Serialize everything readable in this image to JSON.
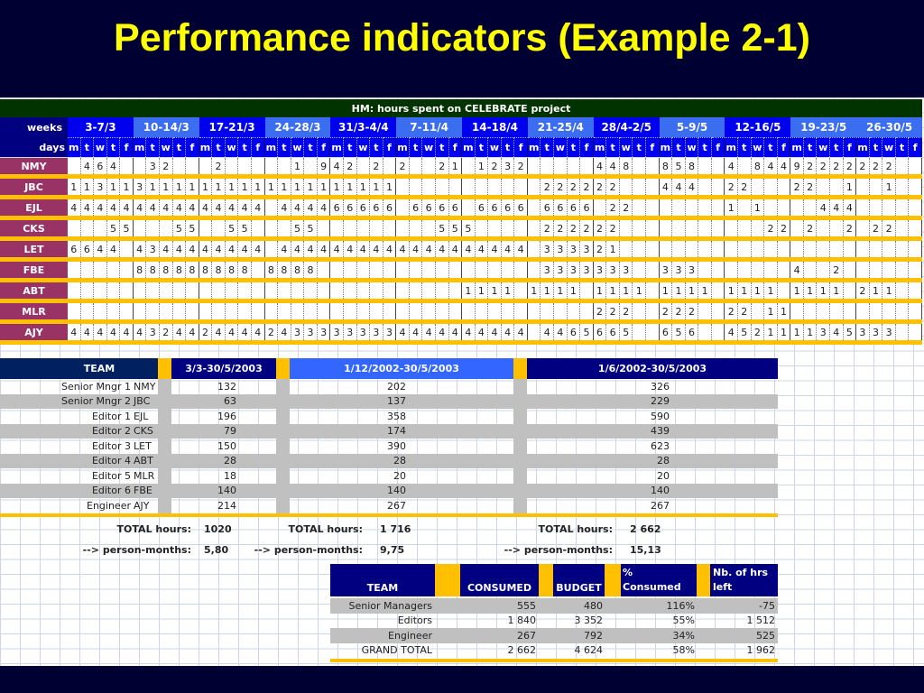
{
  "title": "Performance indicators (Example 2-1)",
  "colors": {
    "title": "#ffff00",
    "title_bar": "#003300",
    "week_dark": "#0000ee",
    "week_light": "#3a6df0",
    "person_label": "#993366",
    "stripe": "#ffc000",
    "navy": "#000080",
    "light_blue": "#3366ff",
    "row_gray": "#c0c0c0"
  },
  "hours_table": {
    "title": "HM: hours spent on CELEBRATE project",
    "weeks_label": "weeks",
    "days_label": "days",
    "weeks": [
      "3-7/3",
      "10-14/3",
      "17-21/3",
      "24-28/3",
      "31/3-4/4",
      "7-11/4",
      "14-18/4",
      "21-25/4",
      "28/4-2/5",
      "5-9/5",
      "12-16/5",
      "19-23/5",
      "26-30/5"
    ],
    "week_shade": [
      "dark",
      "light",
      "dark",
      "light",
      "dark",
      "light",
      "dark",
      "light",
      "dark",
      "light",
      "dark",
      "light",
      "light"
    ],
    "day_labels": [
      "m",
      "t",
      "w",
      "t",
      "f"
    ],
    "rows": [
      {
        "code": "NMY",
        "hours": [
          null,
          4,
          6,
          4,
          null,
          null,
          3,
          2,
          null,
          null,
          null,
          2,
          null,
          null,
          null,
          null,
          null,
          1,
          null,
          9,
          4,
          2,
          null,
          2,
          null,
          2,
          null,
          null,
          2,
          1,
          null,
          1,
          2,
          3,
          2,
          null,
          null,
          null,
          null,
          null,
          4,
          4,
          8,
          null,
          null,
          8,
          5,
          8,
          null,
          null,
          4,
          null,
          8,
          4,
          4,
          9,
          2,
          2,
          2,
          2,
          2,
          2,
          2,
          null,
          null
        ]
      },
      {
        "code": "JBC",
        "hours": [
          1,
          1,
          3,
          1,
          1,
          3,
          1,
          1,
          1,
          1,
          1,
          1,
          1,
          1,
          1,
          1,
          1,
          1,
          1,
          1,
          1,
          1,
          1,
          1,
          1,
          null,
          null,
          null,
          null,
          null,
          null,
          null,
          null,
          null,
          null,
          null,
          2,
          2,
          2,
          2,
          2,
          2,
          null,
          null,
          null,
          4,
          4,
          4,
          null,
          null,
          2,
          2,
          null,
          null,
          null,
          2,
          2,
          null,
          null,
          1,
          null,
          null,
          1,
          null,
          null
        ]
      },
      {
        "code": "EJL",
        "hours": [
          4,
          4,
          4,
          4,
          4,
          4,
          4,
          4,
          4,
          4,
          4,
          4,
          4,
          4,
          4,
          null,
          4,
          4,
          4,
          4,
          6,
          6,
          6,
          6,
          6,
          null,
          6,
          6,
          6,
          6,
          null,
          6,
          6,
          6,
          6,
          null,
          6,
          6,
          6,
          6,
          null,
          2,
          2,
          null,
          null,
          null,
          null,
          null,
          null,
          null,
          1,
          null,
          1,
          null,
          null,
          null,
          null,
          4,
          4,
          4,
          null,
          null,
          null,
          null,
          null
        ]
      },
      {
        "code": "CKS",
        "hours": [
          null,
          null,
          null,
          5,
          5,
          null,
          null,
          null,
          5,
          5,
          null,
          null,
          5,
          5,
          null,
          null,
          null,
          5,
          5,
          null,
          null,
          null,
          null,
          null,
          null,
          null,
          null,
          null,
          5,
          5,
          5,
          null,
          null,
          null,
          null,
          null,
          2,
          2,
          2,
          2,
          2,
          2,
          null,
          null,
          null,
          null,
          null,
          null,
          null,
          null,
          null,
          null,
          null,
          2,
          2,
          null,
          2,
          null,
          null,
          2,
          null,
          2,
          2,
          null,
          null
        ]
      },
      {
        "code": "LET",
        "hours": [
          6,
          6,
          4,
          4,
          null,
          4,
          3,
          4,
          4,
          4,
          4,
          4,
          4,
          4,
          4,
          null,
          4,
          4,
          4,
          4,
          4,
          4,
          4,
          4,
          4,
          4,
          4,
          4,
          4,
          4,
          4,
          4,
          4,
          4,
          4,
          null,
          3,
          3,
          3,
          3,
          2,
          1,
          null,
          null,
          null,
          null,
          null,
          null,
          null,
          null,
          null,
          null,
          null,
          null,
          null,
          null,
          null,
          null,
          null,
          null,
          null,
          null,
          null,
          null,
          null
        ]
      },
      {
        "code": "FBE",
        "hours": [
          null,
          null,
          null,
          null,
          null,
          8,
          8,
          8,
          8,
          8,
          8,
          8,
          8,
          8,
          null,
          8,
          8,
          8,
          8,
          null,
          null,
          null,
          null,
          null,
          null,
          null,
          null,
          null,
          null,
          null,
          null,
          null,
          null,
          null,
          null,
          null,
          3,
          3,
          3,
          3,
          3,
          3,
          3,
          null,
          null,
          3,
          3,
          3,
          null,
          null,
          null,
          null,
          null,
          null,
          null,
          4,
          null,
          null,
          2,
          null,
          null,
          null,
          null,
          null,
          null
        ]
      },
      {
        "code": "ABT",
        "hours": [
          null,
          null,
          null,
          null,
          null,
          null,
          null,
          null,
          null,
          null,
          null,
          null,
          null,
          null,
          null,
          null,
          null,
          null,
          null,
          null,
          null,
          null,
          null,
          null,
          null,
          null,
          null,
          null,
          null,
          null,
          1,
          1,
          1,
          1,
          null,
          1,
          1,
          1,
          1,
          null,
          1,
          1,
          1,
          1,
          null,
          1,
          1,
          1,
          1,
          null,
          1,
          1,
          1,
          1,
          null,
          1,
          1,
          1,
          1,
          null,
          2,
          1,
          1,
          null,
          null
        ]
      },
      {
        "code": "MLR",
        "hours": [
          null,
          null,
          null,
          null,
          null,
          null,
          null,
          null,
          null,
          null,
          null,
          null,
          null,
          null,
          null,
          null,
          null,
          null,
          null,
          null,
          null,
          null,
          null,
          null,
          null,
          null,
          null,
          null,
          null,
          null,
          null,
          null,
          null,
          null,
          null,
          null,
          null,
          null,
          null,
          null,
          2,
          2,
          2,
          null,
          null,
          2,
          2,
          2,
          null,
          null,
          2,
          2,
          null,
          1,
          1,
          null,
          null,
          null,
          null,
          null,
          null,
          null,
          null,
          null,
          null
        ]
      },
      {
        "code": "AJY",
        "hours": [
          4,
          4,
          4,
          4,
          4,
          4,
          3,
          2,
          4,
          4,
          2,
          4,
          4,
          4,
          4,
          2,
          4,
          3,
          3,
          3,
          3,
          3,
          3,
          3,
          3,
          4,
          4,
          4,
          4,
          4,
          4,
          4,
          4,
          4,
          4,
          null,
          4,
          4,
          6,
          5,
          6,
          6,
          5,
          null,
          null,
          6,
          5,
          6,
          null,
          null,
          4,
          5,
          2,
          1,
          1,
          1,
          1,
          3,
          4,
          5,
          3,
          3,
          3,
          null,
          null
        ]
      }
    ]
  },
  "summary_table": {
    "headers": {
      "team": "TEAM",
      "period1": "3/3-30/5/2003",
      "period2": "1/12/2002-30/5/2003",
      "period3": "1/6/2002-30/5/2003"
    },
    "rows": [
      {
        "role": "Senior Mngr 1",
        "code": "NMY",
        "p1": "132",
        "p2": "202",
        "p3": "326"
      },
      {
        "role": "Senior Mngr 2",
        "code": "JBC",
        "p1": "63",
        "p2": "137",
        "p3": "229"
      },
      {
        "role": "Editor 1",
        "code": "EJL",
        "p1": "196",
        "p2": "358",
        "p3": "590"
      },
      {
        "role": "Editor 2",
        "code": "CKS",
        "p1": "79",
        "p2": "174",
        "p3": "439"
      },
      {
        "role": "Editor 3",
        "code": "LET",
        "p1": "150",
        "p2": "390",
        "p3": "623"
      },
      {
        "role": "Editor 4",
        "code": "ABT",
        "p1": "28",
        "p2": "28",
        "p3": "28"
      },
      {
        "role": "Editor 5",
        "code": "MLR",
        "p1": "18",
        "p2": "20",
        "p3": "20"
      },
      {
        "role": "Editor 6",
        "code": "FBE",
        "p1": "140",
        "p2": "140",
        "p3": "140"
      },
      {
        "role": "Engineer",
        "code": "AJY",
        "p1": "214",
        "p2": "267",
        "p3": "267"
      }
    ],
    "total_label": "TOTAL hours:",
    "pm_label": "--> person-months:",
    "totals": [
      "1020",
      "1 716",
      "2 662"
    ],
    "person_months": [
      "5,80",
      "9,75",
      "15,13"
    ]
  },
  "budget_table": {
    "headers": {
      "team": "TEAM",
      "consumed": "CONSUMED",
      "budget": "BUDGET",
      "pct_line1": "%",
      "pct_line2": "Consumed",
      "left_line1": "Nb. of hrs",
      "left_line2": "left"
    },
    "rows": [
      {
        "team": "Senior Managers",
        "consumed": "555",
        "budget": "480",
        "pct": "116%",
        "left": "-75"
      },
      {
        "team": "Editors",
        "consumed": "1 840",
        "budget": "3 352",
        "pct": "55%",
        "left": "1 512"
      },
      {
        "team": "Engineer",
        "consumed": "267",
        "budget": "792",
        "pct": "34%",
        "left": "525"
      },
      {
        "team": "GRAND TOTAL",
        "consumed": "2 662",
        "budget": "4 624",
        "pct": "58%",
        "left": "1 962"
      }
    ]
  }
}
